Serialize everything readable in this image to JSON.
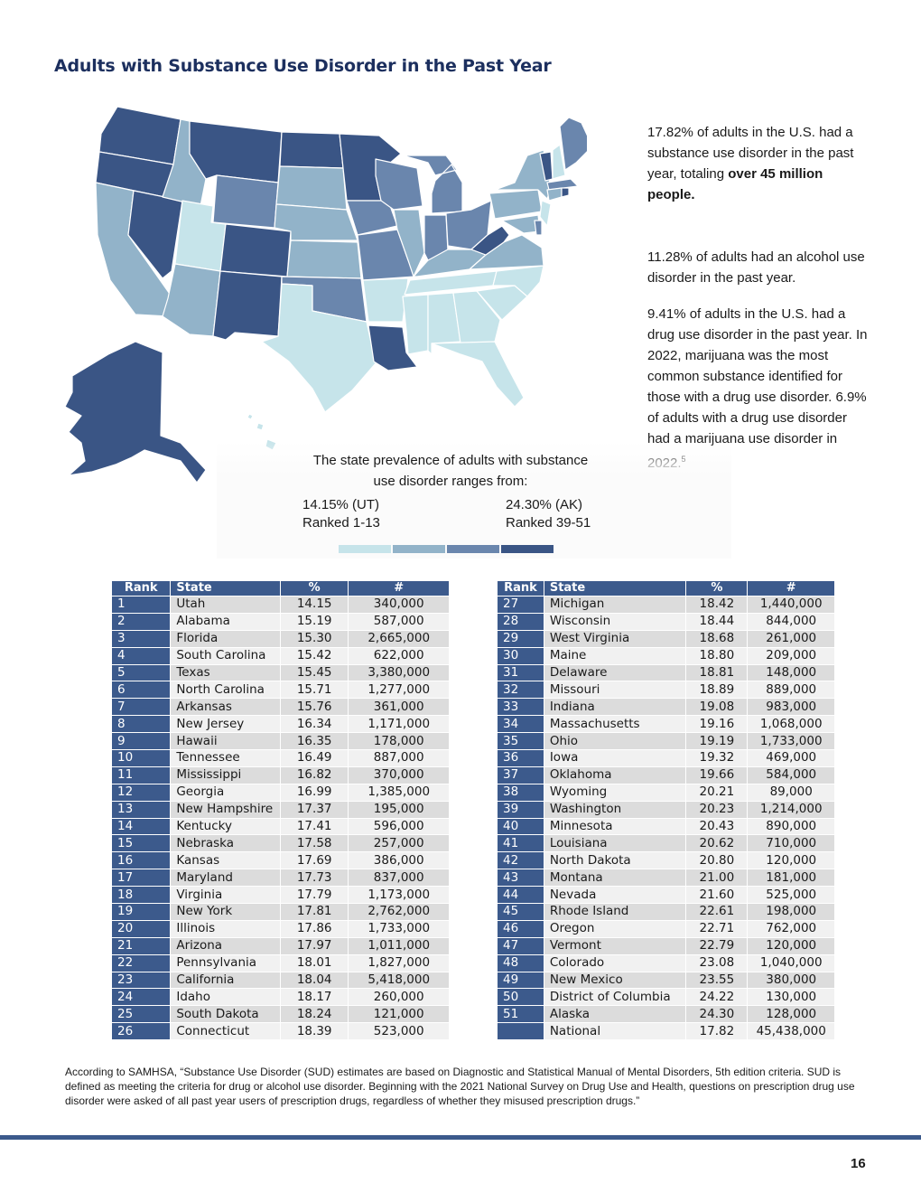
{
  "title": "Adults with Substance Use Disorder in the Past Year",
  "colors": {
    "tier1": "#c6e4ea",
    "tier2": "#92b3c9",
    "tier3": "#6a86ad",
    "tier4": "#3a5585",
    "header": "#3c5a8c"
  },
  "side": {
    "p1_text": "17.82% of adults in the U.S. had a substance use disorder in the past year, totaling ",
    "p1_bold": "over 45 million people.",
    "p2": "11.28% of adults had an alcohol use disorder in the past year.",
    "p3": "9.41% of adults in the U.S. had a drug use disorder in the past year. In 2022, marijuana was the most common substance identified for those with a drug use disorder. 6.9% of adults with a drug use disorder had a marijuana use disorder in 2022.",
    "p3_sup": "5"
  },
  "range": {
    "title": "The state prevalence of adults with substance use disorder ranges from:",
    "low_value": "14.15% (UT)",
    "low_rank": "Ranked 1-13",
    "high_value": "24.30% (AK)",
    "high_rank": "Ranked 39-51"
  },
  "table": {
    "headers": [
      "Rank",
      "State",
      "%",
      "#"
    ],
    "left": [
      [
        "1",
        "Utah",
        "14.15",
        "340,000"
      ],
      [
        "2",
        "Alabama",
        "15.19",
        "587,000"
      ],
      [
        "3",
        "Florida",
        "15.30",
        "2,665,000"
      ],
      [
        "4",
        "South Carolina",
        "15.42",
        "622,000"
      ],
      [
        "5",
        "Texas",
        "15.45",
        "3,380,000"
      ],
      [
        "6",
        "North Carolina",
        "15.71",
        "1,277,000"
      ],
      [
        "7",
        "Arkansas",
        "15.76",
        "361,000"
      ],
      [
        "8",
        "New Jersey",
        "16.34",
        "1,171,000"
      ],
      [
        "9",
        "Hawaii",
        "16.35",
        "178,000"
      ],
      [
        "10",
        "Tennessee",
        "16.49",
        "887,000"
      ],
      [
        "11",
        "Mississippi",
        "16.82",
        "370,000"
      ],
      [
        "12",
        "Georgia",
        "16.99",
        "1,385,000"
      ],
      [
        "13",
        "New Hampshire",
        "17.37",
        "195,000"
      ],
      [
        "14",
        "Kentucky",
        "17.41",
        "596,000"
      ],
      [
        "15",
        "Nebraska",
        "17.58",
        "257,000"
      ],
      [
        "16",
        "Kansas",
        "17.69",
        "386,000"
      ],
      [
        "17",
        "Maryland",
        "17.73",
        "837,000"
      ],
      [
        "18",
        "Virginia",
        "17.79",
        "1,173,000"
      ],
      [
        "19",
        "New York",
        "17.81",
        "2,762,000"
      ],
      [
        "20",
        "Illinois",
        "17.86",
        "1,733,000"
      ],
      [
        "21",
        "Arizona",
        "17.97",
        "1,011,000"
      ],
      [
        "22",
        "Pennsylvania",
        "18.01",
        "1,827,000"
      ],
      [
        "23",
        "California",
        "18.04",
        "5,418,000"
      ],
      [
        "24",
        "Idaho",
        "18.17",
        "260,000"
      ],
      [
        "25",
        "South Dakota",
        "18.24",
        "121,000"
      ],
      [
        "26",
        "Connecticut",
        "18.39",
        "523,000"
      ]
    ],
    "right": [
      [
        "27",
        "Michigan",
        "18.42",
        "1,440,000"
      ],
      [
        "28",
        "Wisconsin",
        "18.44",
        "844,000"
      ],
      [
        "29",
        "West Virginia",
        "18.68",
        "261,000"
      ],
      [
        "30",
        "Maine",
        "18.80",
        "209,000"
      ],
      [
        "31",
        "Delaware",
        "18.81",
        "148,000"
      ],
      [
        "32",
        "Missouri",
        "18.89",
        "889,000"
      ],
      [
        "33",
        "Indiana",
        "19.08",
        "983,000"
      ],
      [
        "34",
        "Massachusetts",
        "19.16",
        "1,068,000"
      ],
      [
        "35",
        "Ohio",
        "19.19",
        "1,733,000"
      ],
      [
        "36",
        "Iowa",
        "19.32",
        "469,000"
      ],
      [
        "37",
        "Oklahoma",
        "19.66",
        "584,000"
      ],
      [
        "38",
        "Wyoming",
        "20.21",
        "89,000"
      ],
      [
        "39",
        "Washington",
        "20.23",
        "1,214,000"
      ],
      [
        "40",
        "Minnesota",
        "20.43",
        "890,000"
      ],
      [
        "41",
        "Louisiana",
        "20.62",
        "710,000"
      ],
      [
        "42",
        "North Dakota",
        "20.80",
        "120,000"
      ],
      [
        "43",
        "Montana",
        "21.00",
        "181,000"
      ],
      [
        "44",
        "Nevada",
        "21.60",
        "525,000"
      ],
      [
        "45",
        "Rhode Island",
        "22.61",
        "198,000"
      ],
      [
        "46",
        "Oregon",
        "22.71",
        "762,000"
      ],
      [
        "47",
        "Vermont",
        "22.79",
        "120,000"
      ],
      [
        "48",
        "Colorado",
        "23.08",
        "1,040,000"
      ],
      [
        "49",
        "New Mexico",
        "23.55",
        "380,000"
      ],
      [
        "50",
        "District of Columbia",
        "24.22",
        "130,000"
      ],
      [
        "51",
        "Alaska",
        "24.30",
        "128,000"
      ],
      [
        "",
        "National",
        "17.82",
        "45,438,000"
      ]
    ]
  },
  "footnote": "According to SAMHSA, “Substance Use Disorder (SUD) estimates are based on Diagnostic and Statistical Manual of Mental Disorders, 5th edition criteria. SUD is defined as meeting the criteria for drug or alcohol use disorder. Beginning with the 2021 National Survey on Drug Use and Health, questions on prescription drug use disorder were asked of all past year users of prescription drugs, regardless of whether they misused prescription drugs.”",
  "page_number": "16"
}
